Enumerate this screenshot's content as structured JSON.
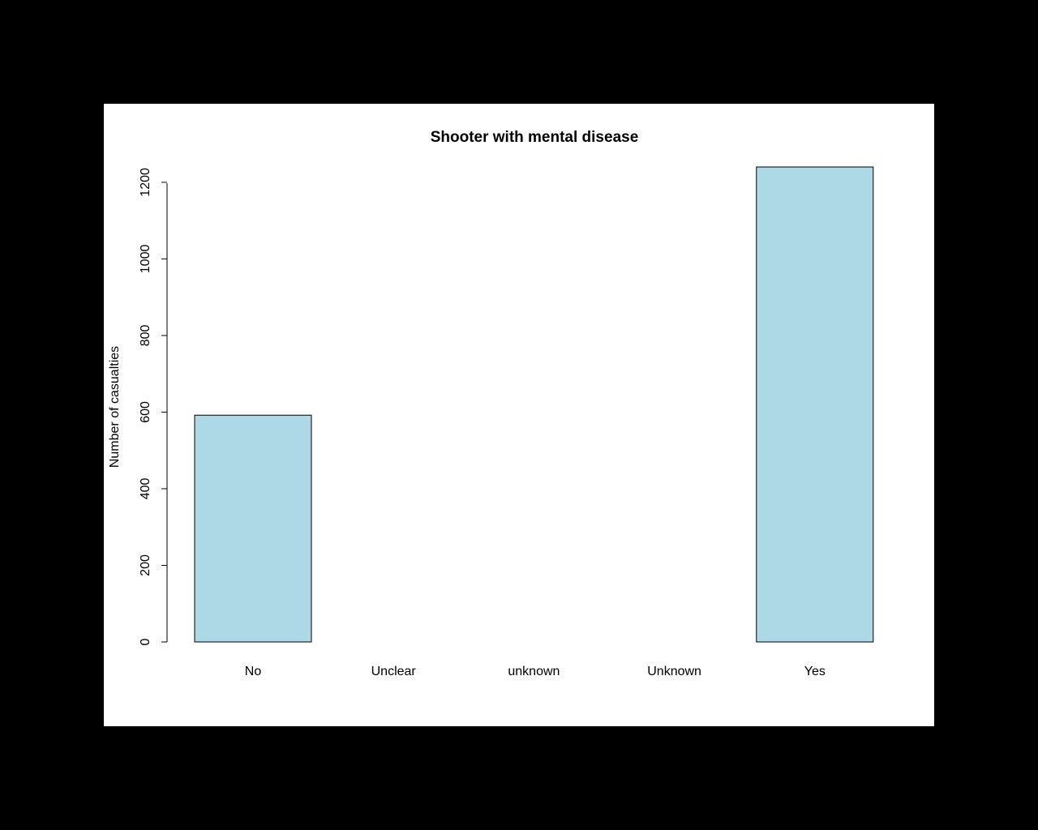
{
  "chart_data": {
    "type": "bar",
    "title": "Shooter with mental disease",
    "xlabel": "",
    "ylabel": "Number of casualties",
    "categories": [
      "No",
      "Unclear",
      "unknown",
      "Unknown",
      "Yes"
    ],
    "values": [
      592,
      0,
      0,
      0,
      1240
    ],
    "yticks": [
      0,
      200,
      400,
      600,
      800,
      1000,
      1200
    ],
    "ylim": [
      0,
      1240
    ],
    "bar_color": "#add8e6",
    "border_color": "#000000",
    "grid": false,
    "legend": "none"
  }
}
